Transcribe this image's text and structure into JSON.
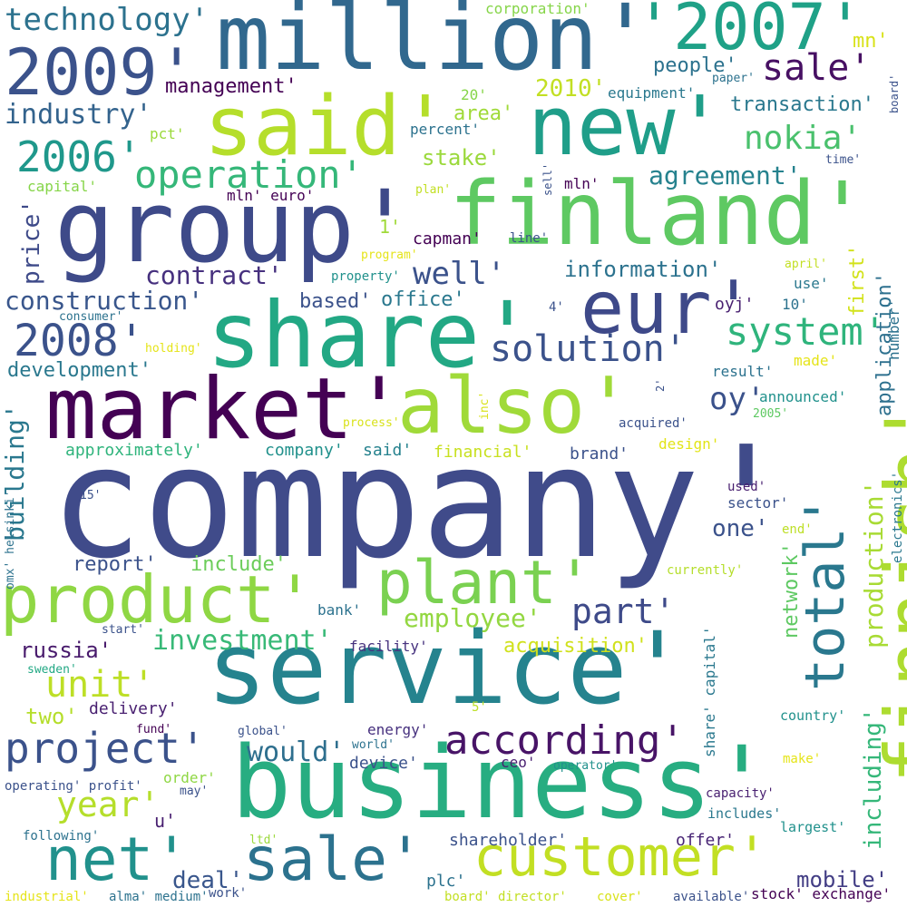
{
  "words": [
    {
      "text": "company'",
      "color": "#404b8a"
    },
    {
      "text": "service'",
      "color": "#25838e"
    },
    {
      "text": "business'",
      "color": "#27ad81"
    },
    {
      "text": "market'",
      "color": "#440154"
    },
    {
      "text": "group'",
      "color": "#3e4a89"
    },
    {
      "text": "finland'",
      "color": "#5ec962"
    },
    {
      "text": "share'",
      "color": "#22a884"
    },
    {
      "text": "million'",
      "color": "#31688e"
    },
    {
      "text": "said'",
      "color": "#b5de2b"
    },
    {
      "text": "also'",
      "color": "#a0da39"
    },
    {
      "text": "finnish'",
      "color": "#addc30"
    },
    {
      "text": "new'",
      "color": "#1f9e89"
    },
    {
      "text": "'2007'",
      "color": "#1fa187"
    },
    {
      "text": "2009'",
      "color": "#3b528b"
    },
    {
      "text": "eur'",
      "color": "#3e4989"
    },
    {
      "text": "product'",
      "color": "#8fd744"
    },
    {
      "text": "plant'",
      "color": "#7ad151"
    },
    {
      "text": "total'",
      "color": "#2a788e"
    },
    {
      "text": "customer'",
      "color": "#c2df23"
    },
    {
      "text": "net'",
      "color": "#21918c"
    },
    {
      "text": "sale'",
      "color": "#2c728e"
    },
    {
      "text": "project'",
      "color": "#3b528b"
    },
    {
      "text": "according'",
      "color": "#481467"
    },
    {
      "text": "operation'",
      "color": "#35b779"
    },
    {
      "text": "2006'",
      "color": "#1f988b"
    },
    {
      "text": "2008'",
      "color": "#3b528b"
    },
    {
      "text": "solution'",
      "color": "#3b528b"
    },
    {
      "text": "system'",
      "color": "#2fb47c"
    },
    {
      "text": "sale'",
      "color": "#471063"
    },
    {
      "text": "technology'",
      "color": "#2c728e"
    },
    {
      "text": "industry'",
      "color": "#33638d"
    },
    {
      "text": "nokia'",
      "color": "#4ac16d"
    },
    {
      "text": "well'",
      "color": "#3b528b"
    },
    {
      "text": "unit'",
      "color": "#bddf26"
    },
    {
      "text": "part'",
      "color": "#3e4a89"
    },
    {
      "text": "year'",
      "color": "#b5de2b"
    },
    {
      "text": "construction'",
      "color": "#39568c"
    },
    {
      "text": "investment'",
      "color": "#38b977"
    },
    {
      "text": "employee'",
      "color": "#93d741"
    },
    {
      "text": "would'",
      "color": "#2e6f8e"
    },
    {
      "text": "oy'",
      "color": "#3b528b"
    },
    {
      "text": "contract'",
      "color": "#46307e"
    },
    {
      "text": "agreement'",
      "color": "#26828e"
    },
    {
      "text": "information'",
      "color": "#2c728e"
    },
    {
      "text": "building'",
      "color": "#2a788e"
    },
    {
      "text": "production'",
      "color": "#a8db34"
    },
    {
      "text": "including'",
      "color": "#35b779"
    },
    {
      "text": "price'",
      "color": "#3e4a89"
    },
    {
      "text": "mobile'",
      "color": "#433e85"
    },
    {
      "text": "deal'",
      "color": "#39568c"
    },
    {
      "text": "russia'",
      "color": "#481a6c"
    },
    {
      "text": "acquisition'",
      "color": "#d0e11c"
    },
    {
      "text": "development'",
      "color": "#2a788e"
    },
    {
      "text": "management'",
      "color": "#440154"
    },
    {
      "text": "transaction'",
      "color": "#2a788e"
    },
    {
      "text": "people'",
      "color": "#2c728e"
    },
    {
      "text": "network'",
      "color": "#5ec962"
    },
    {
      "text": "application'",
      "color": "#2d708e"
    },
    {
      "text": "first'",
      "color": "#d2e21b"
    },
    {
      "text": "stake'",
      "color": "#9bd93c"
    },
    {
      "text": "area'",
      "color": "#a0da39"
    },
    {
      "text": "2010'",
      "color": "#c2df23"
    },
    {
      "text": "mn'",
      "color": "#d8e219"
    },
    {
      "text": "report'",
      "color": "#3b528b"
    },
    {
      "text": "include'",
      "color": "#6ccd5a"
    },
    {
      "text": "one'",
      "color": "#3b528b"
    },
    {
      "text": "two'",
      "color": "#b5de2b"
    },
    {
      "text": "delivery'",
      "color": "#481f70"
    },
    {
      "text": "offer'",
      "color": "#482475"
    },
    {
      "text": "shareholder'",
      "color": "#3b528b"
    },
    {
      "text": "plc'",
      "color": "#2c728e"
    },
    {
      "text": "u'",
      "color": "#481f70"
    },
    {
      "text": "based'",
      "color": "#3b528b"
    },
    {
      "text": "office'",
      "color": "#2a788e"
    },
    {
      "text": "capman'",
      "color": "#440154"
    },
    {
      "text": "approximately'",
      "color": "#2fb47c"
    },
    {
      "text": "company'",
      "color": "#21918c"
    },
    {
      "text": "said'",
      "color": "#26828e"
    },
    {
      "text": "financial'",
      "color": "#c8e020"
    },
    {
      "text": "brand'",
      "color": "#3b528b"
    },
    {
      "text": "design'",
      "color": "#e2e418"
    },
    {
      "text": "facility'",
      "color": "#46327e"
    },
    {
      "text": "energy'",
      "color": "#46307e"
    },
    {
      "text": "device'",
      "color": "#3b528b"
    },
    {
      "text": "ceo'",
      "color": "#481f70"
    },
    {
      "text": "order'",
      "color": "#8fd744"
    },
    {
      "text": "result'",
      "color": "#2c728e"
    },
    {
      "text": "made'",
      "color": "#e5e419"
    },
    {
      "text": "announced'",
      "color": "#21918c"
    },
    {
      "text": "acquired'",
      "color": "#3b528b"
    },
    {
      "text": "sector'",
      "color": "#3b528b"
    },
    {
      "text": "end'",
      "color": "#bddf26"
    },
    {
      "text": "use'",
      "color": "#2a788e"
    },
    {
      "text": "oyj'",
      "color": "#481f70"
    },
    {
      "text": "percent'",
      "color": "#2c728e"
    },
    {
      "text": "corporation'",
      "color": "#86d549"
    },
    {
      "text": "equipment'",
      "color": "#2a788e"
    },
    {
      "text": "mln' euro'",
      "color": "#440154"
    },
    {
      "text": "mln'",
      "color": "#440154"
    },
    {
      "text": "capital'",
      "color": "#86d549"
    },
    {
      "text": "pct'",
      "color": "#9bd93c"
    },
    {
      "text": "20'",
      "color": "#86d549"
    },
    {
      "text": "10'",
      "color": "#2c728e"
    },
    {
      "text": "1'",
      "color": "#a0da39"
    },
    {
      "text": "4'",
      "color": "#3b528b"
    },
    {
      "text": "5'",
      "color": "#bddf26"
    },
    {
      "text": "2'",
      "color": "#3b528b"
    },
    {
      "text": "number'",
      "color": "#2c728e"
    },
    {
      "text": "time'",
      "color": "#3b528b"
    },
    {
      "text": "board'",
      "color": "#3b528b"
    },
    {
      "text": "paper'",
      "color": "#2c728e"
    },
    {
      "text": "plan'",
      "color": "#c2df23"
    },
    {
      "text": "sell'",
      "color": "#3b528b"
    },
    {
      "text": "line'",
      "color": "#3b528b"
    },
    {
      "text": "program'",
      "color": "#e5e419"
    },
    {
      "text": "property'",
      "color": "#21918c"
    },
    {
      "text": "consumer'",
      "color": "#2c728e"
    },
    {
      "text": "holding'",
      "color": "#e5e419"
    },
    {
      "text": "process'",
      "color": "#d8e219"
    },
    {
      "text": "inc'",
      "color": "#d8e219"
    },
    {
      "text": "april'",
      "color": "#c2df23"
    },
    {
      "text": "2005'",
      "color": "#5ec962"
    },
    {
      "text": "currently'",
      "color": "#b5de2b"
    },
    {
      "text": "used'",
      "color": "#481f70"
    },
    {
      "text": "electronics'",
      "color": "#2a788e"
    },
    {
      "text": "country'",
      "color": "#21918c"
    },
    {
      "text": "capacity'",
      "color": "#481f70"
    },
    {
      "text": "includes'",
      "color": "#2a788e"
    },
    {
      "text": "largest'",
      "color": "#21918c"
    },
    {
      "text": "make'",
      "color": "#e5e419"
    },
    {
      "text": "share' capital'",
      "color": "#2a788e"
    },
    {
      "text": "operator'",
      "color": "#21918c"
    },
    {
      "text": "world'",
      "color": "#2c728e"
    },
    {
      "text": "global'",
      "color": "#3b528b"
    },
    {
      "text": "fund'",
      "color": "#440154"
    },
    {
      "text": "start'",
      "color": "#3b528b"
    },
    {
      "text": "sweden'",
      "color": "#22a884"
    },
    {
      "text": "omx' helsinki'",
      "color": "#2c728e"
    },
    {
      "text": "15'",
      "color": "#3b528b"
    },
    {
      "text": "bank'",
      "color": "#2c728e"
    },
    {
      "text": "operating' profit'",
      "color": "#3b528b"
    },
    {
      "text": "may'",
      "color": "#3b528b"
    },
    {
      "text": "following'",
      "color": "#2c728e"
    },
    {
      "text": "ltd'",
      "color": "#9bd93c"
    },
    {
      "text": "industrial'",
      "color": "#e5e419"
    },
    {
      "text": "alma' medium'",
      "color": "#2c728e"
    },
    {
      "text": "work'",
      "color": "#3b528b"
    },
    {
      "text": "board' director'",
      "color": "#c2df23"
    },
    {
      "text": "cover'",
      "color": "#d8e219"
    },
    {
      "text": "available'",
      "color": "#3b528b"
    },
    {
      "text": "stock' exchange'",
      "color": "#440154"
    }
  ]
}
